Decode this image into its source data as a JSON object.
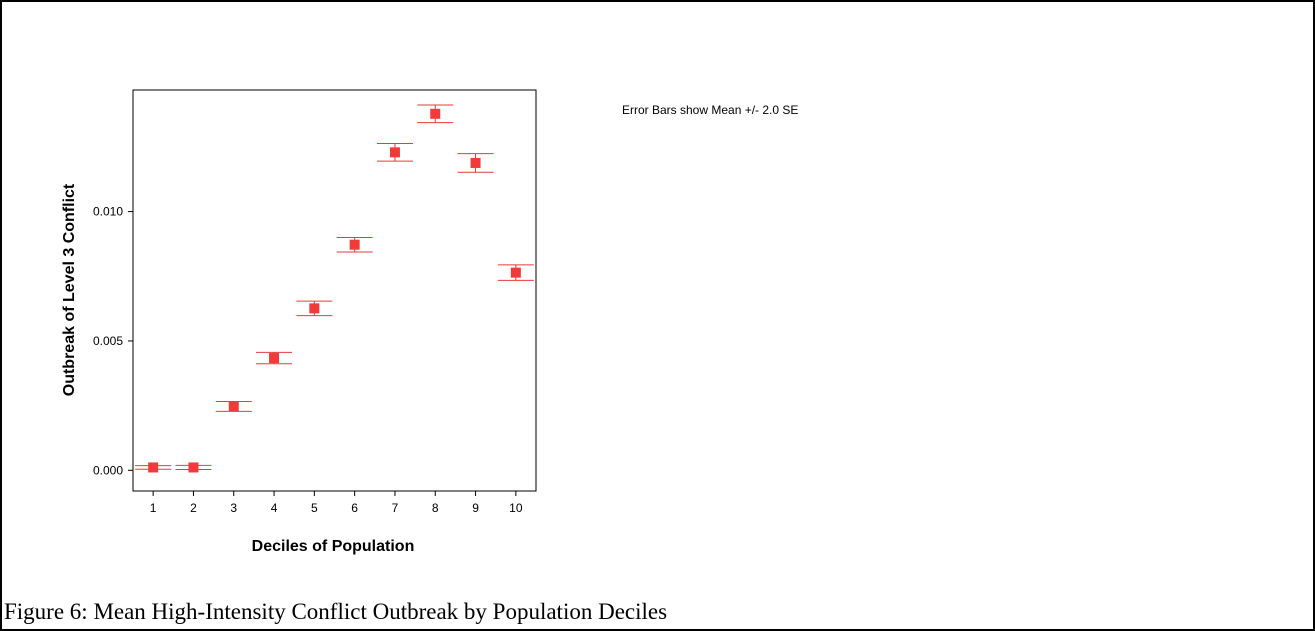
{
  "caption": "Figure 6: Mean High-Intensity Conflict Outbreak by Population Deciles",
  "colors": {
    "marker": "#f23a3a",
    "error_bar": "#e53b3b",
    "axis": "#000000",
    "plot_background": "#ffffff"
  },
  "chart_data": {
    "type": "scatter",
    "title": "",
    "xlabel": "Deciles of Population",
    "ylabel": "Outbreak of Level 3 Conflict",
    "annotation": "Error Bars show Mean +/- 2.0 SE",
    "x": [
      1,
      2,
      3,
      4,
      5,
      6,
      7,
      8,
      9,
      10
    ],
    "x_tick_labels": [
      "1",
      "2",
      "3",
      "4",
      "5",
      "6",
      "7",
      "8",
      "9",
      "10"
    ],
    "y_tick_values": [
      0.0,
      0.005,
      0.01
    ],
    "y_tick_labels": [
      "0.000",
      "0.005",
      "0.010"
    ],
    "xlim": [
      0.5,
      10.5
    ],
    "ylim": [
      -0.0008,
      0.0147
    ],
    "grid": false,
    "legend": "none",
    "series": [
      {
        "marker": "square",
        "values": [
          0.00011,
          0.00011,
          0.00247,
          0.00434,
          0.00626,
          0.00872,
          0.01229,
          0.01378,
          0.01188,
          0.00764
        ],
        "lower": [
          4e-05,
          3e-05,
          0.00228,
          0.00412,
          0.00598,
          0.00844,
          0.01195,
          0.01344,
          0.01152,
          0.00734
        ],
        "upper": [
          0.00018,
          0.00019,
          0.00266,
          0.00456,
          0.00654,
          0.009,
          0.01263,
          0.01412,
          0.01224,
          0.00794
        ]
      }
    ]
  }
}
